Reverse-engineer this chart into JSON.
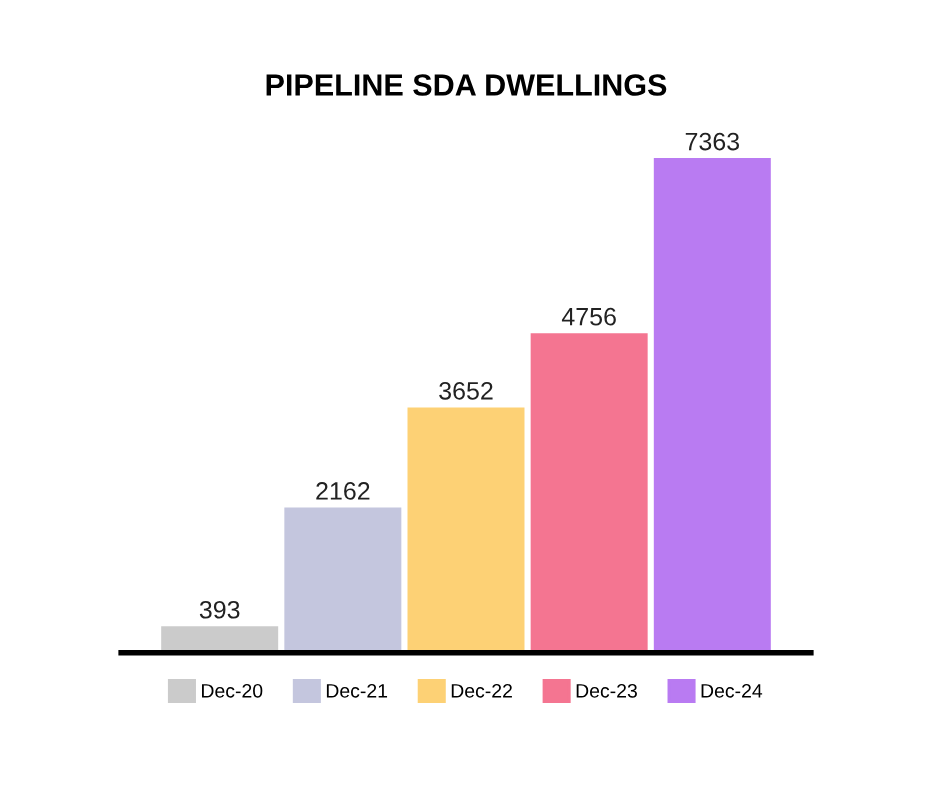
{
  "chart_data": {
    "type": "bar",
    "title": "PIPELINE SDA DWELLINGS",
    "categories": [
      null,
      null,
      null,
      null,
      null
    ],
    "stacked": true,
    "series": [
      {
        "name": "Dec-20",
        "color": "#cbcbcb",
        "values": [
          393,
          null,
          null,
          null,
          null
        ]
      },
      {
        "name": "Dec-21",
        "color": "#c4c6de",
        "values": [
          null,
          2162,
          null,
          null,
          null
        ]
      },
      {
        "name": "Dec-22",
        "color": "#fdd175",
        "values": [
          null,
          null,
          3652,
          null,
          null
        ]
      },
      {
        "name": "Dec-23",
        "color": "#f47591",
        "values": [
          null,
          null,
          null,
          4756,
          null
        ]
      },
      {
        "name": "Dec-24",
        "color": "#b97bf2",
        "values": [
          null,
          null,
          null,
          null,
          7363
        ]
      }
    ],
    "data_labels": true,
    "legend": "bottom"
  }
}
